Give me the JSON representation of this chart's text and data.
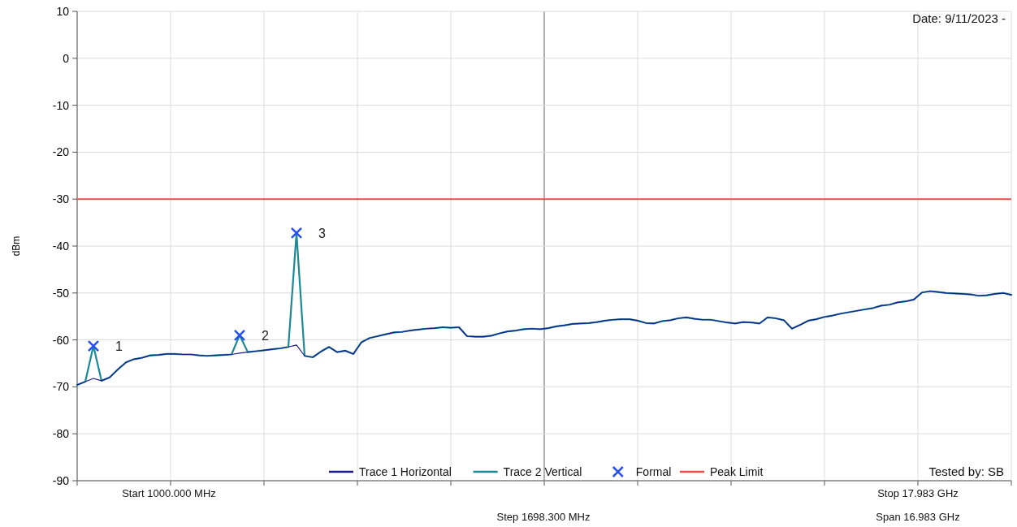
{
  "chart_data": {
    "type": "line",
    "ylabel": "dBm",
    "ylim": [
      -90,
      10
    ],
    "yticks": [
      -90,
      -80,
      -70,
      -60,
      -50,
      -40,
      -30,
      -20,
      -10,
      0,
      10
    ],
    "grid": true,
    "legend": "bottom",
    "line_style": "solid",
    "categories": [
      null,
      null,
      null,
      null,
      null,
      null,
      null,
      null,
      null,
      null,
      null,
      null,
      null,
      null,
      null,
      null,
      null,
      null,
      null,
      null,
      null,
      null,
      null,
      null,
      null,
      null,
      null,
      null,
      null,
      null,
      null,
      null,
      null,
      null,
      null,
      null,
      null,
      null,
      null,
      null,
      null,
      null,
      null,
      null,
      null,
      null,
      null,
      null,
      null,
      null,
      null,
      null,
      null,
      null,
      null,
      null,
      null,
      null,
      null,
      null,
      null,
      null,
      null,
      null,
      null,
      null,
      null,
      null,
      null,
      null,
      null,
      null,
      null,
      null,
      null,
      null,
      null,
      null,
      null,
      null,
      null,
      null,
      null,
      null,
      null,
      null,
      null,
      null,
      null,
      null,
      null,
      null,
      null,
      null,
      null,
      null,
      null,
      null,
      null,
      null,
      null,
      null,
      null,
      null,
      null,
      null,
      null,
      null,
      null,
      null,
      null,
      null,
      null,
      null,
      null,
      null
    ],
    "series": [
      {
        "name": "Trace 1 Horizontal",
        "color": "#1a1a8c",
        "values": [
          -69.6,
          -68.9,
          -68.2,
          -68.7,
          -68.0,
          -66.3,
          -64.8,
          -64.1,
          -63.8,
          -63.3,
          -63.2,
          -63.0,
          -63.0,
          -63.1,
          -63.1,
          -63.3,
          -63.4,
          -63.3,
          -63.2,
          -63.1,
          -62.8,
          -62.6,
          -62.4,
          -62.2,
          -62.0,
          -61.8,
          -61.5,
          -61.1,
          -63.4,
          -63.7,
          -62.5,
          -61.5,
          -62.6,
          -62.3,
          -63.0,
          -60.5,
          -59.6,
          -59.2,
          -58.8,
          -58.4,
          -58.3,
          -58.0,
          -57.8,
          -57.6,
          -57.5,
          -57.3,
          -57.4,
          -57.3,
          -59.2,
          -59.3,
          -59.3,
          -59.1,
          -58.6,
          -58.2,
          -58.0,
          -57.7,
          -57.6,
          -57.7,
          -57.5,
          -57.1,
          -56.9,
          -56.6,
          -56.5,
          -56.4,
          -56.2,
          -55.9,
          -55.7,
          -55.6,
          -55.6,
          -55.9,
          -56.4,
          -56.5,
          -56.0,
          -55.8,
          -55.4,
          -55.2,
          -55.5,
          -55.7,
          -55.7,
          -56.0,
          -56.3,
          -56.5,
          -56.2,
          -56.3,
          -56.5,
          -55.2,
          -55.4,
          -55.8,
          -57.6,
          -56.8,
          -55.9,
          -55.6,
          -55.1,
          -54.8,
          -54.4,
          -54.1,
          -53.8,
          -53.5,
          -53.2,
          -52.7,
          -52.5,
          -52.0,
          -51.8,
          -51.4,
          -49.9,
          -49.6,
          -49.8,
          -50.0,
          -50.1,
          -50.2,
          -50.3,
          -50.6,
          -50.5,
          -50.2,
          -50.0,
          -50.4
        ]
      },
      {
        "name": "Trace 2 Vertical",
        "color": "#1b8a94",
        "values": [
          -69.6,
          -68.9,
          -61.3,
          -68.7,
          -68.0,
          -66.3,
          -64.8,
          -64.1,
          -63.8,
          -63.3,
          -63.2,
          -63.0,
          -63.0,
          -63.1,
          -63.1,
          -63.3,
          -63.4,
          -63.3,
          -63.2,
          -63.1,
          -59.0,
          -62.6,
          -62.4,
          -62.2,
          -62.0,
          -61.8,
          -61.5,
          -37.2,
          -63.4,
          -63.7,
          -62.5,
          -61.5,
          -62.6,
          -62.3,
          -63.0,
          -60.5,
          -59.6,
          -59.2,
          -58.8,
          -58.4,
          -58.3,
          -58.0,
          -57.8,
          -57.6,
          -57.5,
          -57.3,
          -57.4,
          -57.3,
          -59.2,
          -59.3,
          -59.3,
          -59.1,
          -58.6,
          -58.2,
          -58.0,
          -57.7,
          -57.6,
          -57.7,
          -57.5,
          -57.1,
          -56.9,
          -56.6,
          -56.5,
          -56.4,
          -56.2,
          -55.9,
          -55.7,
          -55.6,
          -55.6,
          -55.9,
          -56.4,
          -56.5,
          -56.0,
          -55.8,
          -55.4,
          -55.2,
          -55.5,
          -55.7,
          -55.7,
          -56.0,
          -56.3,
          -56.5,
          -56.2,
          -56.3,
          -56.5,
          -55.2,
          -55.4,
          -55.8,
          -57.6,
          -56.8,
          -55.9,
          -55.6,
          -55.1,
          -54.8,
          -54.4,
          -54.1,
          -53.8,
          -53.5,
          -53.2,
          -52.7,
          -52.5,
          -52.0,
          -51.8,
          -51.4,
          -49.9,
          -49.6,
          -49.8,
          -50.0,
          -50.1,
          -50.2,
          -50.3,
          -50.6,
          -50.5,
          -50.2,
          -50.0,
          -50.4
        ]
      },
      {
        "name": "Formal",
        "marker": "cross",
        "line_style": "none",
        "color": "#2a4ff0",
        "values": [
          null,
          null,
          -61.3,
          null,
          null,
          null,
          null,
          null,
          null,
          null,
          null,
          null,
          null,
          null,
          null,
          null,
          null,
          null,
          null,
          null,
          -59.0,
          null,
          null,
          null,
          null,
          null,
          null,
          -37.2,
          null,
          null,
          null,
          null,
          null,
          null,
          null,
          null,
          null,
          null,
          null,
          null,
          null,
          null,
          null,
          null,
          null,
          null,
          null,
          null,
          null,
          null,
          null,
          null,
          null,
          null,
          null,
          null,
          null,
          null,
          null,
          null,
          null,
          null,
          null,
          null,
          null,
          null,
          null,
          null,
          null,
          null,
          null,
          null,
          null,
          null,
          null,
          null,
          null,
          null,
          null,
          null,
          null,
          null,
          null,
          null,
          null,
          null,
          null,
          null,
          null,
          null,
          null,
          null,
          null,
          null,
          null,
          null,
          null,
          null,
          null,
          null,
          null,
          null,
          null,
          null,
          null,
          null,
          null,
          null,
          null,
          null,
          null,
          null,
          null,
          null,
          null,
          null
        ]
      }
    ],
    "ref_lines": [
      {
        "axis": "y",
        "value": -30,
        "label": "Peak Limit",
        "color": "#ee4c4c"
      }
    ],
    "annotations": [
      "1",
      "2",
      "3",
      "Date: 9/11/2023 -",
      "Tested by: SB",
      "Start 1000.000 MHz",
      "Stop 17.983 GHz",
      "Step 1698.300 MHz",
      "Span 16.983 GHz"
    ]
  }
}
